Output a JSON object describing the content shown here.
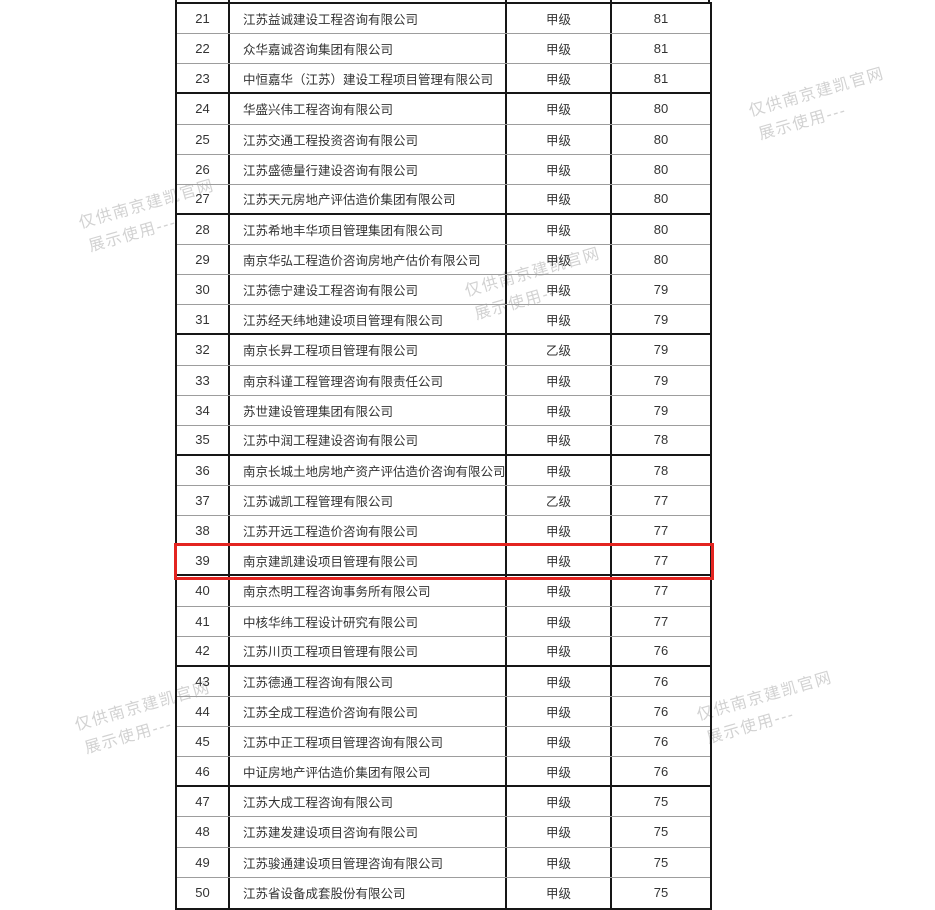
{
  "watermark": {
    "line1": "仅供南京建凯官网",
    "line2": "展示使用---"
  },
  "table": {
    "highlighted_rank": "39",
    "group_separator_after_ranks": [
      "23",
      "27",
      "31",
      "35",
      "39",
      "42",
      "46"
    ],
    "rows": [
      {
        "rank": "21",
        "company": "江苏益诚建设工程咨询有限公司",
        "grade": "甲级",
        "score": "81"
      },
      {
        "rank": "22",
        "company": "众华嘉诚咨询集团有限公司",
        "grade": "甲级",
        "score": "81"
      },
      {
        "rank": "23",
        "company": "中恒嘉华（江苏）建设工程项目管理有限公司",
        "grade": "甲级",
        "score": "81"
      },
      {
        "rank": "24",
        "company": "华盛兴伟工程咨询有限公司",
        "grade": "甲级",
        "score": "80"
      },
      {
        "rank": "25",
        "company": "江苏交通工程投资咨询有限公司",
        "grade": "甲级",
        "score": "80"
      },
      {
        "rank": "26",
        "company": "江苏盛德量行建设咨询有限公司",
        "grade": "甲级",
        "score": "80"
      },
      {
        "rank": "27",
        "company": "江苏天元房地产评估造价集团有限公司",
        "grade": "甲级",
        "score": "80"
      },
      {
        "rank": "28",
        "company": "江苏希地丰华项目管理集团有限公司",
        "grade": "甲级",
        "score": "80"
      },
      {
        "rank": "29",
        "company": "南京华弘工程造价咨询房地产估价有限公司",
        "grade": "甲级",
        "score": "80"
      },
      {
        "rank": "30",
        "company": "江苏德宁建设工程咨询有限公司",
        "grade": "甲级",
        "score": "79"
      },
      {
        "rank": "31",
        "company": "江苏经天纬地建设项目管理有限公司",
        "grade": "甲级",
        "score": "79"
      },
      {
        "rank": "32",
        "company": "南京长昇工程项目管理有限公司",
        "grade": "乙级",
        "score": "79"
      },
      {
        "rank": "33",
        "company": "南京科谨工程管理咨询有限责任公司",
        "grade": "甲级",
        "score": "79"
      },
      {
        "rank": "34",
        "company": "苏世建设管理集团有限公司",
        "grade": "甲级",
        "score": "79"
      },
      {
        "rank": "35",
        "company": "江苏中润工程建设咨询有限公司",
        "grade": "甲级",
        "score": "78"
      },
      {
        "rank": "36",
        "company": "南京长城土地房地产资产评估造价咨询有限公司",
        "grade": "甲级",
        "score": "78"
      },
      {
        "rank": "37",
        "company": "江苏诚凯工程管理有限公司",
        "grade": "乙级",
        "score": "77"
      },
      {
        "rank": "38",
        "company": "江苏开远工程造价咨询有限公司",
        "grade": "甲级",
        "score": "77"
      },
      {
        "rank": "39",
        "company": "南京建凯建设项目管理有限公司",
        "grade": "甲级",
        "score": "77"
      },
      {
        "rank": "40",
        "company": "南京杰明工程咨询事务所有限公司",
        "grade": "甲级",
        "score": "77"
      },
      {
        "rank": "41",
        "company": "中核华纬工程设计研究有限公司",
        "grade": "甲级",
        "score": "77"
      },
      {
        "rank": "42",
        "company": "江苏川页工程项目管理有限公司",
        "grade": "甲级",
        "score": "76"
      },
      {
        "rank": "43",
        "company": "江苏德通工程咨询有限公司",
        "grade": "甲级",
        "score": "76"
      },
      {
        "rank": "44",
        "company": "江苏全成工程造价咨询有限公司",
        "grade": "甲级",
        "score": "76"
      },
      {
        "rank": "45",
        "company": "江苏中正工程项目管理咨询有限公司",
        "grade": "甲级",
        "score": "76"
      },
      {
        "rank": "46",
        "company": "中证房地产评估造价集团有限公司",
        "grade": "甲级",
        "score": "76"
      },
      {
        "rank": "47",
        "company": "江苏大成工程咨询有限公司",
        "grade": "甲级",
        "score": "75"
      },
      {
        "rank": "48",
        "company": "江苏建发建设项目咨询有限公司",
        "grade": "甲级",
        "score": "75"
      },
      {
        "rank": "49",
        "company": "江苏骏通建设项目管理咨询有限公司",
        "grade": "甲级",
        "score": "75"
      },
      {
        "rank": "50",
        "company": "江苏省设备成套股份有限公司",
        "grade": "甲级",
        "score": "75"
      }
    ]
  },
  "colors": {
    "highlight_red": "#e32420",
    "border_dark": "#161616",
    "border_light": "#9d9d9d",
    "text": "#333333",
    "watermark_gray": "#d2d2d2"
  }
}
